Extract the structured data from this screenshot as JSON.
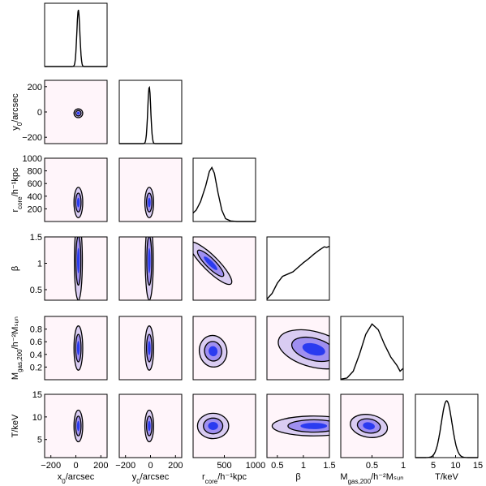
{
  "chart_data": {
    "type": "corner",
    "parameters": [
      {
        "id": "x0",
        "name": "x",
        "sub": "0",
        "unit": "/arcsec",
        "range": [
          -250,
          250
        ],
        "ticks": [
          -200,
          0,
          200
        ]
      },
      {
        "id": "y0",
        "name": "y",
        "sub": "0",
        "unit": "/arcsec",
        "range": [
          -250,
          250
        ],
        "ticks": [
          -200,
          0,
          200
        ]
      },
      {
        "id": "rcore",
        "name": "r",
        "sub": "core",
        "unit": "/h⁻¹kpc",
        "range": [
          0,
          1000
        ],
        "ticks": [
          200,
          400,
          600,
          800,
          1000
        ],
        "xticks": [
          500,
          1000
        ]
      },
      {
        "id": "beta",
        "name": "β",
        "sub": "",
        "unit": "",
        "range": [
          0.3,
          1.5
        ],
        "ticks": [
          0.5,
          1,
          1.5
        ]
      },
      {
        "id": "mgas",
        "name": "M",
        "sub": "gas,200",
        "unit": "/h⁻²Mₛᵤₙ",
        "range": [
          0,
          1
        ],
        "ticks": [
          0.2,
          0.4,
          0.6,
          0.8
        ],
        "xticks": [
          0.5,
          1
        ]
      },
      {
        "id": "T",
        "name": "T",
        "sub": "",
        "unit": "/keV",
        "range": [
          1,
          15
        ],
        "ticks": [
          5,
          10,
          15
        ]
      }
    ],
    "axis_labels": {
      "x": [
        "x0/arcsec",
        "y0/arcsec",
        "rcore/h-1kpc",
        "β",
        "Mgas,200/h-2MSun",
        "T/keV"
      ],
      "y": [
        "",
        "y0/arcsec",
        "rcore/h-1kpc",
        "β",
        "Mgas,200/h-2MSun",
        "T/keV"
      ]
    },
    "tick_labels": {
      "x0": [
        "−200",
        "0",
        "200"
      ],
      "y0": [
        "−200",
        "0",
        "200"
      ],
      "rcore_x": [
        "500",
        "1000"
      ],
      "rcore_y": [
        "200",
        "400",
        "600",
        "800",
        "1000"
      ],
      "beta": [
        "0.5",
        "1",
        "1.5"
      ],
      "mgas_x": [
        "0.5",
        "1"
      ],
      "mgas_y": [
        "0.2",
        "0.4",
        "0.6",
        "0.8"
      ],
      "T": [
        "5",
        "10",
        "15"
      ]
    },
    "marginals": [
      {
        "param": "x0",
        "shape": "gauss",
        "mean": 20,
        "sigma": 12
      },
      {
        "param": "y0",
        "shape": "gauss",
        "mean": -10,
        "sigma": 12
      },
      {
        "param": "rcore",
        "points": [
          [
            0,
            0.15
          ],
          [
            50,
            0.2
          ],
          [
            120,
            0.35
          ],
          [
            200,
            0.62
          ],
          [
            260,
            0.88
          ],
          [
            300,
            0.95
          ],
          [
            340,
            0.85
          ],
          [
            400,
            0.5
          ],
          [
            460,
            0.2
          ],
          [
            520,
            0.05
          ],
          [
            600,
            0.01
          ],
          [
            700,
            0
          ],
          [
            1000,
            0
          ]
        ]
      },
      {
        "param": "beta",
        "points": [
          [
            0.3,
            0.02
          ],
          [
            0.4,
            0.12
          ],
          [
            0.5,
            0.3
          ],
          [
            0.6,
            0.42
          ],
          [
            0.7,
            0.46
          ],
          [
            0.8,
            0.5
          ],
          [
            0.9,
            0.58
          ],
          [
            1.0,
            0.66
          ],
          [
            1.1,
            0.73
          ],
          [
            1.2,
            0.81
          ],
          [
            1.3,
            0.88
          ],
          [
            1.4,
            0.94
          ],
          [
            1.45,
            0.93
          ],
          [
            1.5,
            0.95
          ]
        ]
      },
      {
        "param": "mgas",
        "points": [
          [
            0,
            0.01
          ],
          [
            0.1,
            0.03
          ],
          [
            0.2,
            0.15
          ],
          [
            0.3,
            0.45
          ],
          [
            0.4,
            0.8
          ],
          [
            0.5,
            0.98
          ],
          [
            0.6,
            0.88
          ],
          [
            0.7,
            0.62
          ],
          [
            0.8,
            0.4
          ],
          [
            0.9,
            0.25
          ],
          [
            0.95,
            0.15
          ],
          [
            1.0,
            0.2
          ]
        ]
      },
      {
        "param": "T",
        "shape": "gauss",
        "mean": 8,
        "sigma": 1.2
      }
    ],
    "joints": [
      {
        "x": "x0",
        "y": "y0",
        "cx": 20,
        "cy": -10,
        "rx": 35,
        "ry": 35,
        "tilt": 0
      },
      {
        "x": "x0",
        "y": "rcore",
        "cx": 20,
        "cy": 300,
        "rx": 35,
        "ry": 240,
        "tilt": 0
      },
      {
        "x": "y0",
        "y": "rcore",
        "cx": -10,
        "cy": 300,
        "rx": 35,
        "ry": 240,
        "tilt": 0
      },
      {
        "x": "rcore",
        "y": "rcore",
        "cx": 0,
        "cy": 0,
        "rx": 0,
        "ry": 0,
        "tilt": 0,
        "skip": true
      },
      {
        "x": "x0",
        "y": "beta",
        "cx": 20,
        "cy": 1.05,
        "rx": 32,
        "ry": 0.75,
        "tilt": 0
      },
      {
        "x": "y0",
        "y": "beta",
        "cx": -10,
        "cy": 1.05,
        "rx": 32,
        "ry": 0.75,
        "tilt": 0
      },
      {
        "x": "rcore",
        "y": "beta",
        "cx": 280,
        "cy": 1.0,
        "rx": 120,
        "ry": 0.55,
        "tilt": 45
      },
      {
        "x": "x0",
        "y": "mgas",
        "cx": 20,
        "cy": 0.5,
        "rx": 35,
        "ry": 0.35,
        "tilt": 0
      },
      {
        "x": "y0",
        "y": "mgas",
        "cx": -10,
        "cy": 0.5,
        "rx": 35,
        "ry": 0.35,
        "tilt": 0
      },
      {
        "x": "rcore",
        "y": "mgas",
        "cx": 320,
        "cy": 0.45,
        "rx": 220,
        "ry": 0.25,
        "tilt": 10
      },
      {
        "x": "beta",
        "y": "mgas",
        "cx": 1.2,
        "cy": 0.48,
        "rx": 0.7,
        "ry": 0.28,
        "tilt": -15
      },
      {
        "x": "x0",
        "y": "T",
        "cx": 20,
        "cy": 8,
        "rx": 35,
        "ry": 3.5,
        "tilt": 0
      },
      {
        "x": "y0",
        "y": "T",
        "cx": -10,
        "cy": 8,
        "rx": 35,
        "ry": 3.5,
        "tilt": 0
      },
      {
        "x": "rcore",
        "y": "T",
        "cx": 320,
        "cy": 8,
        "rx": 250,
        "ry": 2.8,
        "tilt": 0
      },
      {
        "x": "beta",
        "y": "T",
        "cx": 1.2,
        "cy": 8,
        "rx": 0.8,
        "ry": 2.2,
        "tilt": 0
      },
      {
        "x": "mgas",
        "y": "T",
        "cx": 0.45,
        "cy": 8,
        "rx": 0.3,
        "ry": 2.5,
        "tilt": -10
      }
    ],
    "colors": {
      "background": "#fff5fa",
      "fill_low": "#d9ccf2",
      "fill_mid": "#9f8ff0",
      "fill_high": "#2a3bf0",
      "line": "#000000"
    }
  }
}
